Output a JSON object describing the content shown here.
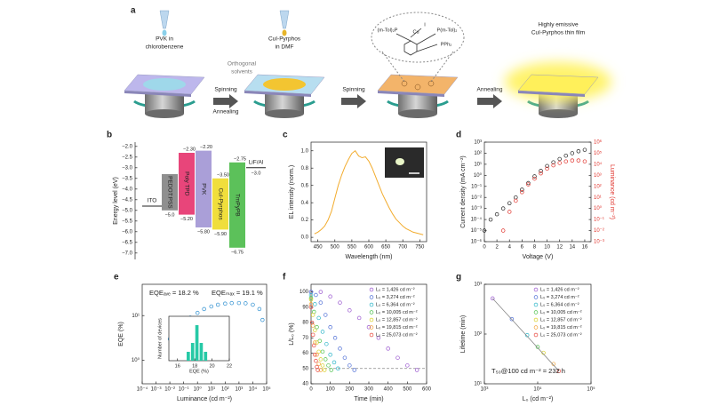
{
  "panel_a": {
    "label": "a",
    "pvk": [
      "PVK in",
      "chlorobenzene"
    ],
    "orthogonal": [
      "Orthogonal",
      "solvents"
    ],
    "cui": [
      "CuI-Pyrphos",
      "in DMF"
    ],
    "film": [
      "Highly emissive",
      "CuI-Pyrphos thin film"
    ],
    "arrows": [
      [
        "Spinning",
        "Annealing"
      ],
      [
        "Spinning"
      ],
      [
        "Annealing"
      ]
    ],
    "molecule": [
      "(m-Tol)₂P",
      "P(m-Tol)₂",
      "PPh₂",
      "Cu",
      "I"
    ]
  },
  "chart_data": [
    {
      "type": "energy-levels",
      "panel": "b",
      "ylabel": "Energy level (eV)",
      "ylim": [
        -7.3,
        -1.8
      ],
      "yticks": [
        {
          "value": -2,
          "label": "−2.0"
        },
        {
          "value": -2.5,
          "label": "−2.5"
        },
        {
          "value": -3,
          "label": "−3.0"
        },
        {
          "value": -3.5,
          "label": "−3.5"
        },
        {
          "value": -4,
          "label": "−4.0"
        },
        {
          "value": -4.5,
          "label": "−4.5"
        },
        {
          "value": -5,
          "label": "−5.0"
        },
        {
          "value": -5.5,
          "label": "−5.5"
        },
        {
          "value": -6,
          "label": "−6.0"
        },
        {
          "value": -6.5,
          "label": "−6.5"
        },
        {
          "value": -7,
          "label": "−7.0"
        }
      ],
      "layers": [
        {
          "name": "ITO",
          "color": "#222222",
          "level": -4.8
        },
        {
          "name": "PEDOT:PSS",
          "color": "#8f8f8f",
          "top": -3.3,
          "bottom": -5.0,
          "bottom_label": "−5.0"
        },
        {
          "name": "Poly TPD",
          "color": "#e8457a",
          "top": -2.3,
          "bottom": -5.2,
          "top_label": "−2.30",
          "bottom_label": "−5.20"
        },
        {
          "name": "PVK",
          "color": "#aa9fd8",
          "top": -2.2,
          "bottom": -5.8,
          "top_label": "−2.20",
          "bottom_label": "−5.80"
        },
        {
          "name": "CuI-Pyrphos",
          "color": "#f0de3c",
          "top": -3.5,
          "bottom": -5.9,
          "top_label": "−3.50",
          "bottom_label": "−5.90"
        },
        {
          "name": "TmPyPB",
          "color": "#5cc15a",
          "top": -2.75,
          "bottom": -6.75,
          "top_label": "−2.75",
          "bottom_label": "−6.75"
        },
        {
          "name": "LiF/Al",
          "color": "#222222",
          "level": -3.0,
          "level_label": "−3.0"
        }
      ]
    },
    {
      "type": "line",
      "panel": "c",
      "xlabel": "Wavelength (nm)",
      "ylabel": "EL intensity (norm.)",
      "color": "#f2ac2e",
      "xlim": [
        430,
        770
      ],
      "xticks": [
        450,
        500,
        550,
        600,
        650,
        700,
        750
      ],
      "ylim": [
        -0.05,
        1.1
      ],
      "yticks": [
        {
          "value": 0,
          "label": "0.0"
        },
        0.2,
        0.4,
        0.6,
        0.8,
        {
          "value": 1,
          "label": "1.0"
        }
      ],
      "x": [
        440,
        450,
        460,
        470,
        480,
        490,
        500,
        510,
        520,
        530,
        540,
        550,
        560,
        570,
        580,
        590,
        600,
        610,
        620,
        630,
        640,
        650,
        660,
        670,
        680,
        690,
        700,
        710,
        720,
        730,
        740,
        750,
        760
      ],
      "values": [
        0.04,
        0.06,
        0.09,
        0.13,
        0.2,
        0.3,
        0.45,
        0.6,
        0.72,
        0.82,
        0.9,
        0.97,
        1.0,
        0.94,
        0.92,
        0.93,
        0.88,
        0.8,
        0.7,
        0.6,
        0.5,
        0.42,
        0.34,
        0.27,
        0.21,
        0.17,
        0.13,
        0.1,
        0.08,
        0.06,
        0.05,
        0.04,
        0.03
      ]
    },
    {
      "type": "scatter",
      "panel": "d",
      "xlabel": "Voltage (V)",
      "ylabel": "Current density (mA cm⁻²)",
      "y2label": "Luminance (cd m⁻²)",
      "y2color": "#e0322b",
      "xlim": [
        0,
        17
      ],
      "xticks": [
        0,
        2,
        4,
        6,
        8,
        10,
        12,
        14,
        16
      ],
      "ylog": true,
      "ylim": [
        1e-06,
        1000
      ],
      "yticks": [
        {
          "value": 1e-06,
          "label": "10⁻⁶"
        },
        {
          "value": 1e-05,
          "label": "10⁻⁵"
        },
        {
          "value": 0.0001,
          "label": "10⁻⁴"
        },
        {
          "value": 0.001,
          "label": "10⁻³"
        },
        {
          "value": 0.01,
          "label": "10⁻²"
        },
        {
          "value": 0.1,
          "label": "10⁻¹"
        },
        {
          "value": 1,
          "label": "10⁰"
        },
        {
          "value": 10,
          "label": "10¹"
        },
        {
          "value": 100,
          "label": "10²"
        },
        {
          "value": 1000,
          "label": "10³"
        }
      ],
      "y2log": true,
      "y2lim": [
        0.001,
        1000000
      ],
      "y2ticks": [
        {
          "value": 0.001,
          "label": "10⁻³"
        },
        {
          "value": 0.01,
          "label": "10⁻²"
        },
        {
          "value": 0.1,
          "label": "10⁻¹"
        },
        {
          "value": 1,
          "label": "10⁰"
        },
        {
          "value": 10,
          "label": "10¹"
        },
        {
          "value": 100,
          "label": "10²"
        },
        {
          "value": 1000,
          "label": "10³"
        },
        {
          "value": 10000,
          "label": "10⁴"
        },
        {
          "value": 100000,
          "label": "10⁵"
        },
        {
          "value": 1000000,
          "label": "10⁶"
        }
      ],
      "series": [
        {
          "color": "#222222",
          "x": [
            0,
            1,
            2,
            3,
            4,
            5,
            6,
            7,
            8,
            9,
            10,
            11,
            12,
            13,
            14,
            15,
            16
          ],
          "values": [
            1e-05,
            0.0001,
            0.0003,
            0.001,
            0.003,
            0.01,
            0.05,
            0.2,
            0.8,
            2.5,
            7,
            15,
            30,
            60,
            100,
            150,
            200
          ]
        },
        {
          "color": "#e0322b",
          "axis": "y2",
          "x": [
            3,
            4,
            5,
            6,
            7,
            8,
            9,
            10,
            11,
            12,
            13,
            14,
            15,
            16
          ],
          "values": [
            0.01,
            0.5,
            5,
            30,
            150,
            500,
            1500,
            4000,
            8000,
            13000,
            18000,
            22000,
            22000,
            18000
          ]
        }
      ]
    },
    {
      "type": "scatter",
      "panel": "e",
      "xlabel": "Luminance (cd m⁻²)",
      "ylabel": "EQE (%)",
      "xlog": true,
      "xlim": [
        0.0001,
        100000
      ],
      "xticks": [
        {
          "value": 0.0001,
          "label": "10⁻⁴"
        },
        {
          "value": 0.001,
          "label": "10⁻³"
        },
        {
          "value": 0.01,
          "label": "10⁻²"
        },
        {
          "value": 0.1,
          "label": "10⁻¹"
        },
        {
          "value": 1,
          "label": "10⁰"
        },
        {
          "value": 10,
          "label": "10¹"
        },
        {
          "value": 100,
          "label": "10²"
        },
        {
          "value": 1000,
          "label": "10³"
        },
        {
          "value": 10000,
          "label": "10⁴"
        },
        {
          "value": 100000,
          "label": "10⁵"
        }
      ],
      "ylog": true,
      "ylim": [
        0.3,
        50
      ],
      "yticks": [
        {
          "value": 1,
          "label": "10⁰"
        },
        {
          "value": 10,
          "label": "10¹"
        }
      ],
      "annotations": [
        "EQEₐᵥₑ = 18.2 %",
        "EQEₘₐₓ = 19.1 %"
      ],
      "series": [
        {
          "color": "#2e8fd0",
          "x": [
            0.01,
            0.03,
            0.1,
            0.3,
            1,
            3,
            10,
            30,
            100,
            300,
            1000,
            3000,
            10000,
            30000,
            50000
          ],
          "values": [
            3,
            4.5,
            6.5,
            9,
            11.5,
            14,
            16,
            17.5,
            18.5,
            19,
            19.1,
            18.8,
            17.5,
            14,
            8
          ]
        }
      ],
      "inset": {
        "type": "histogram",
        "xlabel": "EQE (%)",
        "ylabel": "Number of devices",
        "color": "#26c9a6",
        "xlim": [
          15,
          22
        ],
        "xticks": [
          16,
          18,
          20,
          22
        ],
        "ylim": [
          0,
          5
        ],
        "bins": [
          17,
          17.5,
          18,
          18.5,
          19,
          19.5
        ],
        "values": [
          1,
          2,
          4,
          2,
          1
        ]
      }
    },
    {
      "type": "scatter",
      "panel": "f",
      "xlabel": "Time (min)",
      "ylabel": "L/L₀ (%)",
      "legend": "upper right",
      "xlim": [
        0,
        600
      ],
      "xticks": [
        0,
        100,
        200,
        300,
        400,
        500,
        600
      ],
      "ylim": [
        40,
        105
      ],
      "yticks": [
        40,
        50,
        60,
        70,
        80,
        90,
        100
      ],
      "ref_line": 50,
      "series": [
        {
          "name": "L₀ = 1,426 cd m⁻²",
          "color": "#9b59d0",
          "x": [
            0,
            50,
            100,
            150,
            200,
            250,
            300,
            350,
            400,
            450,
            500,
            550
          ],
          "values": [
            100,
            100,
            97,
            93,
            88,
            83,
            77,
            70,
            63,
            57,
            52,
            49
          ]
        },
        {
          "name": "L₀ = 3,274 cd m⁻²",
          "color": "#4f6fd6",
          "x": [
            0,
            25,
            50,
            75,
            100,
            125,
            150,
            175,
            200,
            225
          ],
          "values": [
            100,
            98,
            93,
            85,
            77,
            70,
            63,
            57,
            52,
            49
          ]
        },
        {
          "name": "L₀ = 6,364 cd m⁻²",
          "color": "#2fb6c9",
          "x": [
            0,
            20,
            40,
            60,
            80,
            100,
            120,
            140
          ],
          "values": [
            98,
            92,
            83,
            74,
            66,
            59,
            54,
            50
          ]
        },
        {
          "name": "L₀ = 10,005 cd m⁻²",
          "color": "#4fc24f",
          "x": [
            0,
            15,
            30,
            45,
            60,
            75,
            90,
            105
          ],
          "values": [
            96,
            87,
            77,
            68,
            61,
            56,
            52,
            49
          ]
        },
        {
          "name": "L₀ = 12,857 cd m⁻²",
          "color": "#d8d027",
          "x": [
            0,
            10,
            20,
            30,
            40,
            50,
            60,
            70
          ],
          "values": [
            95,
            85,
            75,
            67,
            61,
            56,
            52,
            49
          ]
        },
        {
          "name": "L₀ = 19,815 cd m⁻²",
          "color": "#f2a33a",
          "x": [
            0,
            10,
            20,
            30,
            40,
            50
          ],
          "values": [
            92,
            78,
            67,
            59,
            53,
            49
          ]
        },
        {
          "name": "L₀ = 25,073 cd m⁻²",
          "color": "#e8453c",
          "x": [
            0,
            5,
            10,
            15,
            20,
            25,
            30,
            35
          ],
          "values": [
            90,
            80,
            72,
            65,
            59,
            55,
            51,
            49
          ]
        }
      ]
    },
    {
      "type": "scatter",
      "panel": "g",
      "xlabel": "L₀ (cd m⁻²)",
      "ylabel": "Lifetime (min)",
      "legend": "upper right",
      "fit": true,
      "xlog": true,
      "xlim": [
        1000,
        100000
      ],
      "xticks": [
        {
          "value": 1000,
          "label": "10³"
        },
        {
          "value": 10000,
          "label": "10⁴"
        },
        {
          "value": 100000,
          "label": "10⁵"
        }
      ],
      "ylog": true,
      "ylim": [
        10,
        1000
      ],
      "yticks": [
        {
          "value": 10,
          "label": "10¹"
        },
        {
          "value": 100,
          "label": "10²"
        },
        {
          "value": 1000,
          "label": "10³"
        }
      ],
      "annotations": [
        "T₅₀@100 cd m⁻² = 232 h"
      ],
      "series": [
        {
          "name": "L₀ = 1,426 cd m⁻²",
          "color": "#9b59d0",
          "x": [
            1426
          ],
          "values": [
            520
          ]
        },
        {
          "name": "L₀ = 3,274 cd m⁻²",
          "color": "#4f6fd6",
          "x": [
            3274
          ],
          "values": [
            200
          ]
        },
        {
          "name": "L₀ = 6,364 cd m⁻²",
          "color": "#2fb6c9",
          "x": [
            6364
          ],
          "values": [
            95
          ]
        },
        {
          "name": "L₀ = 10,005 cd m⁻²",
          "color": "#4fc24f",
          "x": [
            10005
          ],
          "values": [
            55
          ]
        },
        {
          "name": "L₀ = 12,857 cd m⁻²",
          "color": "#d8d027",
          "x": [
            12857
          ],
          "values": [
            42
          ]
        },
        {
          "name": "L₀ = 19,815 cd m⁻²",
          "color": "#f2a33a",
          "x": [
            19815
          ],
          "values": [
            25
          ]
        },
        {
          "name": "L₀ = 25,073 cd m⁻²",
          "color": "#e8453c",
          "x": [
            25073
          ],
          "values": [
            18
          ]
        }
      ]
    }
  ]
}
